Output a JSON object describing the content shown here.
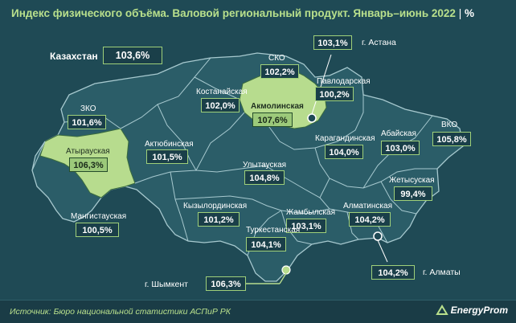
{
  "title": "Индекс физического объёма. Валовой региональный продукт. Январь–июнь 2022",
  "unit": "%",
  "kazakhstan": {
    "name": "Казахстан",
    "value": "103,6%"
  },
  "regions": [
    {
      "id": "zko",
      "name": "ЗКО",
      "value": "101,6%",
      "highlight": false
    },
    {
      "id": "atyrau",
      "name": "Атырауская",
      "value": "106,3%",
      "highlight": true
    },
    {
      "id": "aktobe",
      "name": "Актюбинская",
      "value": "101,5%",
      "highlight": false
    },
    {
      "id": "mangystau",
      "name": "Мангистауская",
      "value": "100,5%",
      "highlight": false
    },
    {
      "id": "kostanay",
      "name": "Костанайская",
      "value": "102,0%",
      "highlight": false
    },
    {
      "id": "sko",
      "name": "СКО",
      "value": "102,2%",
      "highlight": false
    },
    {
      "id": "akmola",
      "name": "Акмолинская",
      "value": "107,6%",
      "highlight": true
    },
    {
      "id": "pavlodar",
      "name": "Павлодарская",
      "value": "100,2%",
      "highlight": false
    },
    {
      "id": "vko",
      "name": "ВКО",
      "value": "105,8%",
      "highlight": false
    },
    {
      "id": "abai",
      "name": "Абайская",
      "value": "103,0%",
      "highlight": false
    },
    {
      "id": "karaganda",
      "name": "Карагандинская",
      "value": "104,0%",
      "highlight": false
    },
    {
      "id": "ulytau",
      "name": "Улытауская",
      "value": "104,8%",
      "highlight": false
    },
    {
      "id": "zhetysu",
      "name": "Жетысуская",
      "value": "99,4%",
      "highlight": false
    },
    {
      "id": "kyzylorda",
      "name": "Кызылординская",
      "value": "101,2%",
      "highlight": false
    },
    {
      "id": "zhambyl",
      "name": "Жамбылская",
      "value": "103,1%",
      "highlight": false
    },
    {
      "id": "almaty_obl",
      "name": "Алматинская",
      "value": "104,2%",
      "highlight": false
    },
    {
      "id": "turkestan",
      "name": "Туркестанская",
      "value": "104,1%",
      "highlight": false
    }
  ],
  "cities": [
    {
      "id": "astana",
      "name": "г. Астана",
      "value": "103,1%"
    },
    {
      "id": "almaty",
      "name": "г. Алматы",
      "value": "104,2%"
    },
    {
      "id": "shymkent",
      "name": "г. Шымкент",
      "value": "106,3%"
    }
  ],
  "source": "Источник: Бюро национальной статистики АСПиР РК",
  "logo": "EnergyProm",
  "colors": {
    "background": "#1f4a55",
    "map_fill": "#2b5d68",
    "border": "#a7c9cf",
    "highlight_fill": "#b7dc8e",
    "accent_green": "#b9e08c"
  }
}
